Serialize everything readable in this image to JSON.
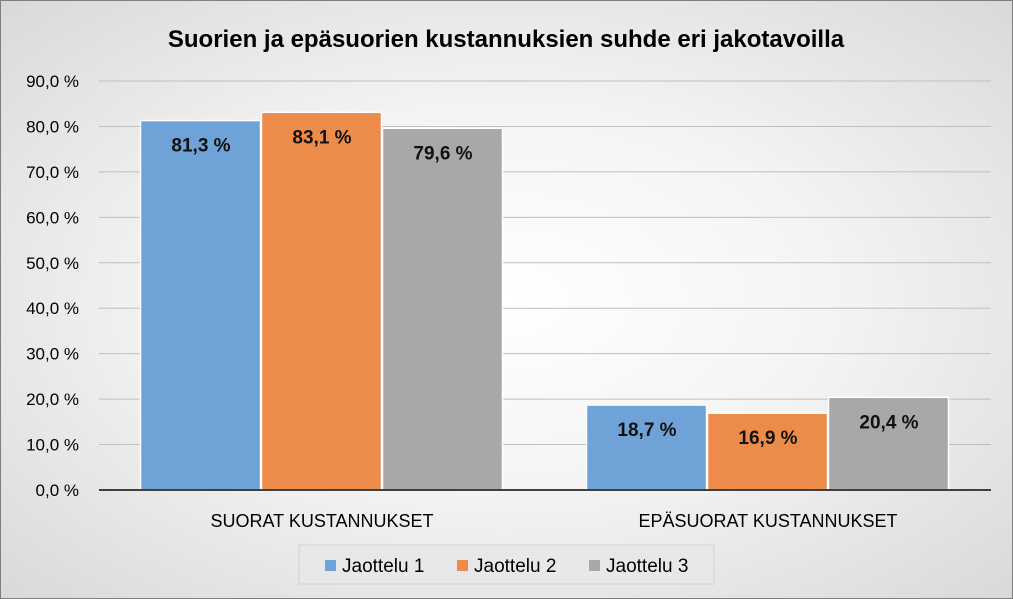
{
  "chart_data": {
    "type": "bar",
    "title": "Suorien ja epäsuorien kustannuksien suhde eri jakotavoilla",
    "categories": [
      "SUORAT KUSTANNUKSET",
      "EPÄSUORAT KUSTANNUKSET"
    ],
    "series": [
      {
        "name": "Jaottelu 1",
        "color": "#6fa3d8",
        "values": [
          81.3,
          18.7
        ],
        "labels": [
          "81,3 %",
          "18,7 %"
        ]
      },
      {
        "name": "Jaottelu 2",
        "color": "#ed8b4a",
        "values": [
          83.1,
          16.9
        ],
        "labels": [
          "83,1 %",
          "16,9 %"
        ]
      },
      {
        "name": "Jaottelu 3",
        "color": "#a8a8a8",
        "values": [
          79.6,
          20.4
        ],
        "labels": [
          "79,6 %",
          "20,4 %"
        ]
      }
    ],
    "ylim": [
      0,
      90
    ],
    "yticks": [
      {
        "value": 0,
        "label": "0,0 %"
      },
      {
        "value": 10,
        "label": "10,0 %"
      },
      {
        "value": 20,
        "label": "20,0 %"
      },
      {
        "value": 30,
        "label": "30,0 %"
      },
      {
        "value": 40,
        "label": "40,0 %"
      },
      {
        "value": 50,
        "label": "50,0 %"
      },
      {
        "value": 60,
        "label": "60,0 %"
      },
      {
        "value": 70,
        "label": "70,0 %"
      },
      {
        "value": 80,
        "label": "80,0 %"
      },
      {
        "value": 90,
        "label": "90,0 %"
      }
    ],
    "grid": true,
    "legend_position": "bottom",
    "xlabel": "",
    "ylabel": ""
  }
}
